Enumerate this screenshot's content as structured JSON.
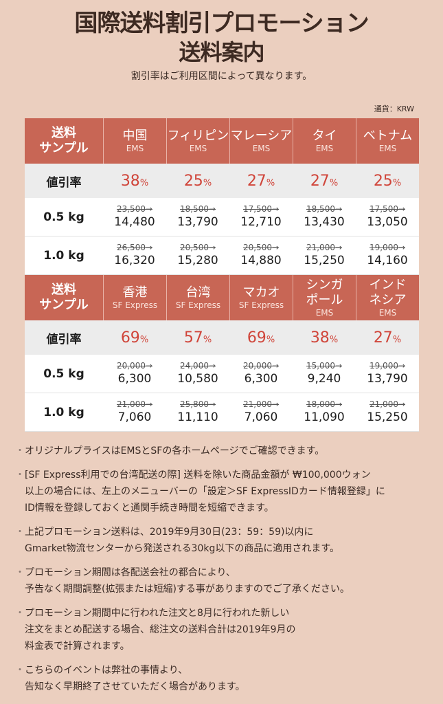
{
  "header": {
    "title_line1": "国際送料割引プロモーション",
    "title_line2": "送料案内",
    "subtitle": "割引率はご利用区間によって異なります。",
    "currency": "通貨：KRW"
  },
  "colors": {
    "header_bg": "#c86655",
    "discount": "#d0453a",
    "page_bg": "#ebcfbf"
  },
  "tables": [
    {
      "header_label": [
        "送料",
        "サンプル"
      ],
      "columns": [
        {
          "name": [
            "中国"
          ],
          "carrier": "EMS"
        },
        {
          "name": [
            "フィリピン"
          ],
          "carrier": "EMS"
        },
        {
          "name": [
            "マレーシア"
          ],
          "carrier": "EMS"
        },
        {
          "name": [
            "タイ"
          ],
          "carrier": "EMS"
        },
        {
          "name": [
            "ベトナム"
          ],
          "carrier": "EMS"
        }
      ],
      "rate_label": "値引率",
      "rates": [
        "38",
        "25",
        "27",
        "27",
        "25"
      ],
      "rows": [
        {
          "label": "0.5 kg",
          "old": [
            "23,500→",
            "18,500→",
            "17,500→",
            "18,500→",
            "17,500→"
          ],
          "new": [
            "14,480",
            "13,790",
            "12,710",
            "13,430",
            "13,050"
          ]
        },
        {
          "label": "1.0 kg",
          "old": [
            "26,500→",
            "20,500→",
            "20,500→",
            "21,000→",
            "19,000→"
          ],
          "new": [
            "16,320",
            "15,280",
            "14,880",
            "15,250",
            "14,160"
          ]
        }
      ]
    },
    {
      "header_label": [
        "送料",
        "サンプル"
      ],
      "columns": [
        {
          "name": [
            "香港"
          ],
          "carrier": "SF Express"
        },
        {
          "name": [
            "台湾"
          ],
          "carrier": "SF Express"
        },
        {
          "name": [
            "マカオ"
          ],
          "carrier": "SF Express"
        },
        {
          "name": [
            "シンガ",
            "ポール"
          ],
          "carrier": "EMS"
        },
        {
          "name": [
            "インド",
            "ネシア"
          ],
          "carrier": "EMS"
        }
      ],
      "rate_label": "値引率",
      "rates": [
        "69",
        "57",
        "69",
        "38",
        "27"
      ],
      "rows": [
        {
          "label": "0.5 kg",
          "old": [
            "20,000→",
            "24,000→",
            "20,000→",
            "15,000→",
            "19,000→"
          ],
          "new": [
            "6,300",
            "10,580",
            "6,300",
            "9,240",
            "13,790"
          ]
        },
        {
          "label": "1.0 kg",
          "old": [
            "21,000→",
            "25,800→",
            "21,000→",
            "18,000→",
            "21,000→"
          ],
          "new": [
            "7,060",
            "11,110",
            "7,060",
            "11,090",
            "15,250"
          ]
        }
      ]
    }
  ],
  "percent_sign": "%",
  "bullet": "・",
  "notes": [
    [
      "オリジナルプライスはEMSとSFの各ホームページでご確認できます。"
    ],
    [
      "[SF Express利用での台湾配送の際] 送料を除いた商品金額が ₩100,000ウォン",
      "以上の場合には、左上のメニューバーの「設定＞SF ExpressIDカード情報登録」に",
      "ID情報を登録しておくと通関手続き時間を短縮できます。"
    ],
    [
      "上記プロモーション送料は、2019年9月30日(23：59：59)以内に",
      "Gmarket物流センターから発送される30kg以下の商品に適用されます。"
    ],
    [
      "プロモーション期間は各配送会社の都合により、",
      "予告なく期間調整(拡張または短縮)する事がありますのでご了承ください。"
    ],
    [
      "プロモーション期間中に行われた注文と8月に行われた新しい",
      "注文をまとめ配送する場合、総注文の送料合計は2019年9月の",
      "料金表で計算されます。"
    ],
    [
      "こちらのイベントは弊社の事情より、",
      "告知なく早期終了させていただく場合があります。"
    ]
  ]
}
